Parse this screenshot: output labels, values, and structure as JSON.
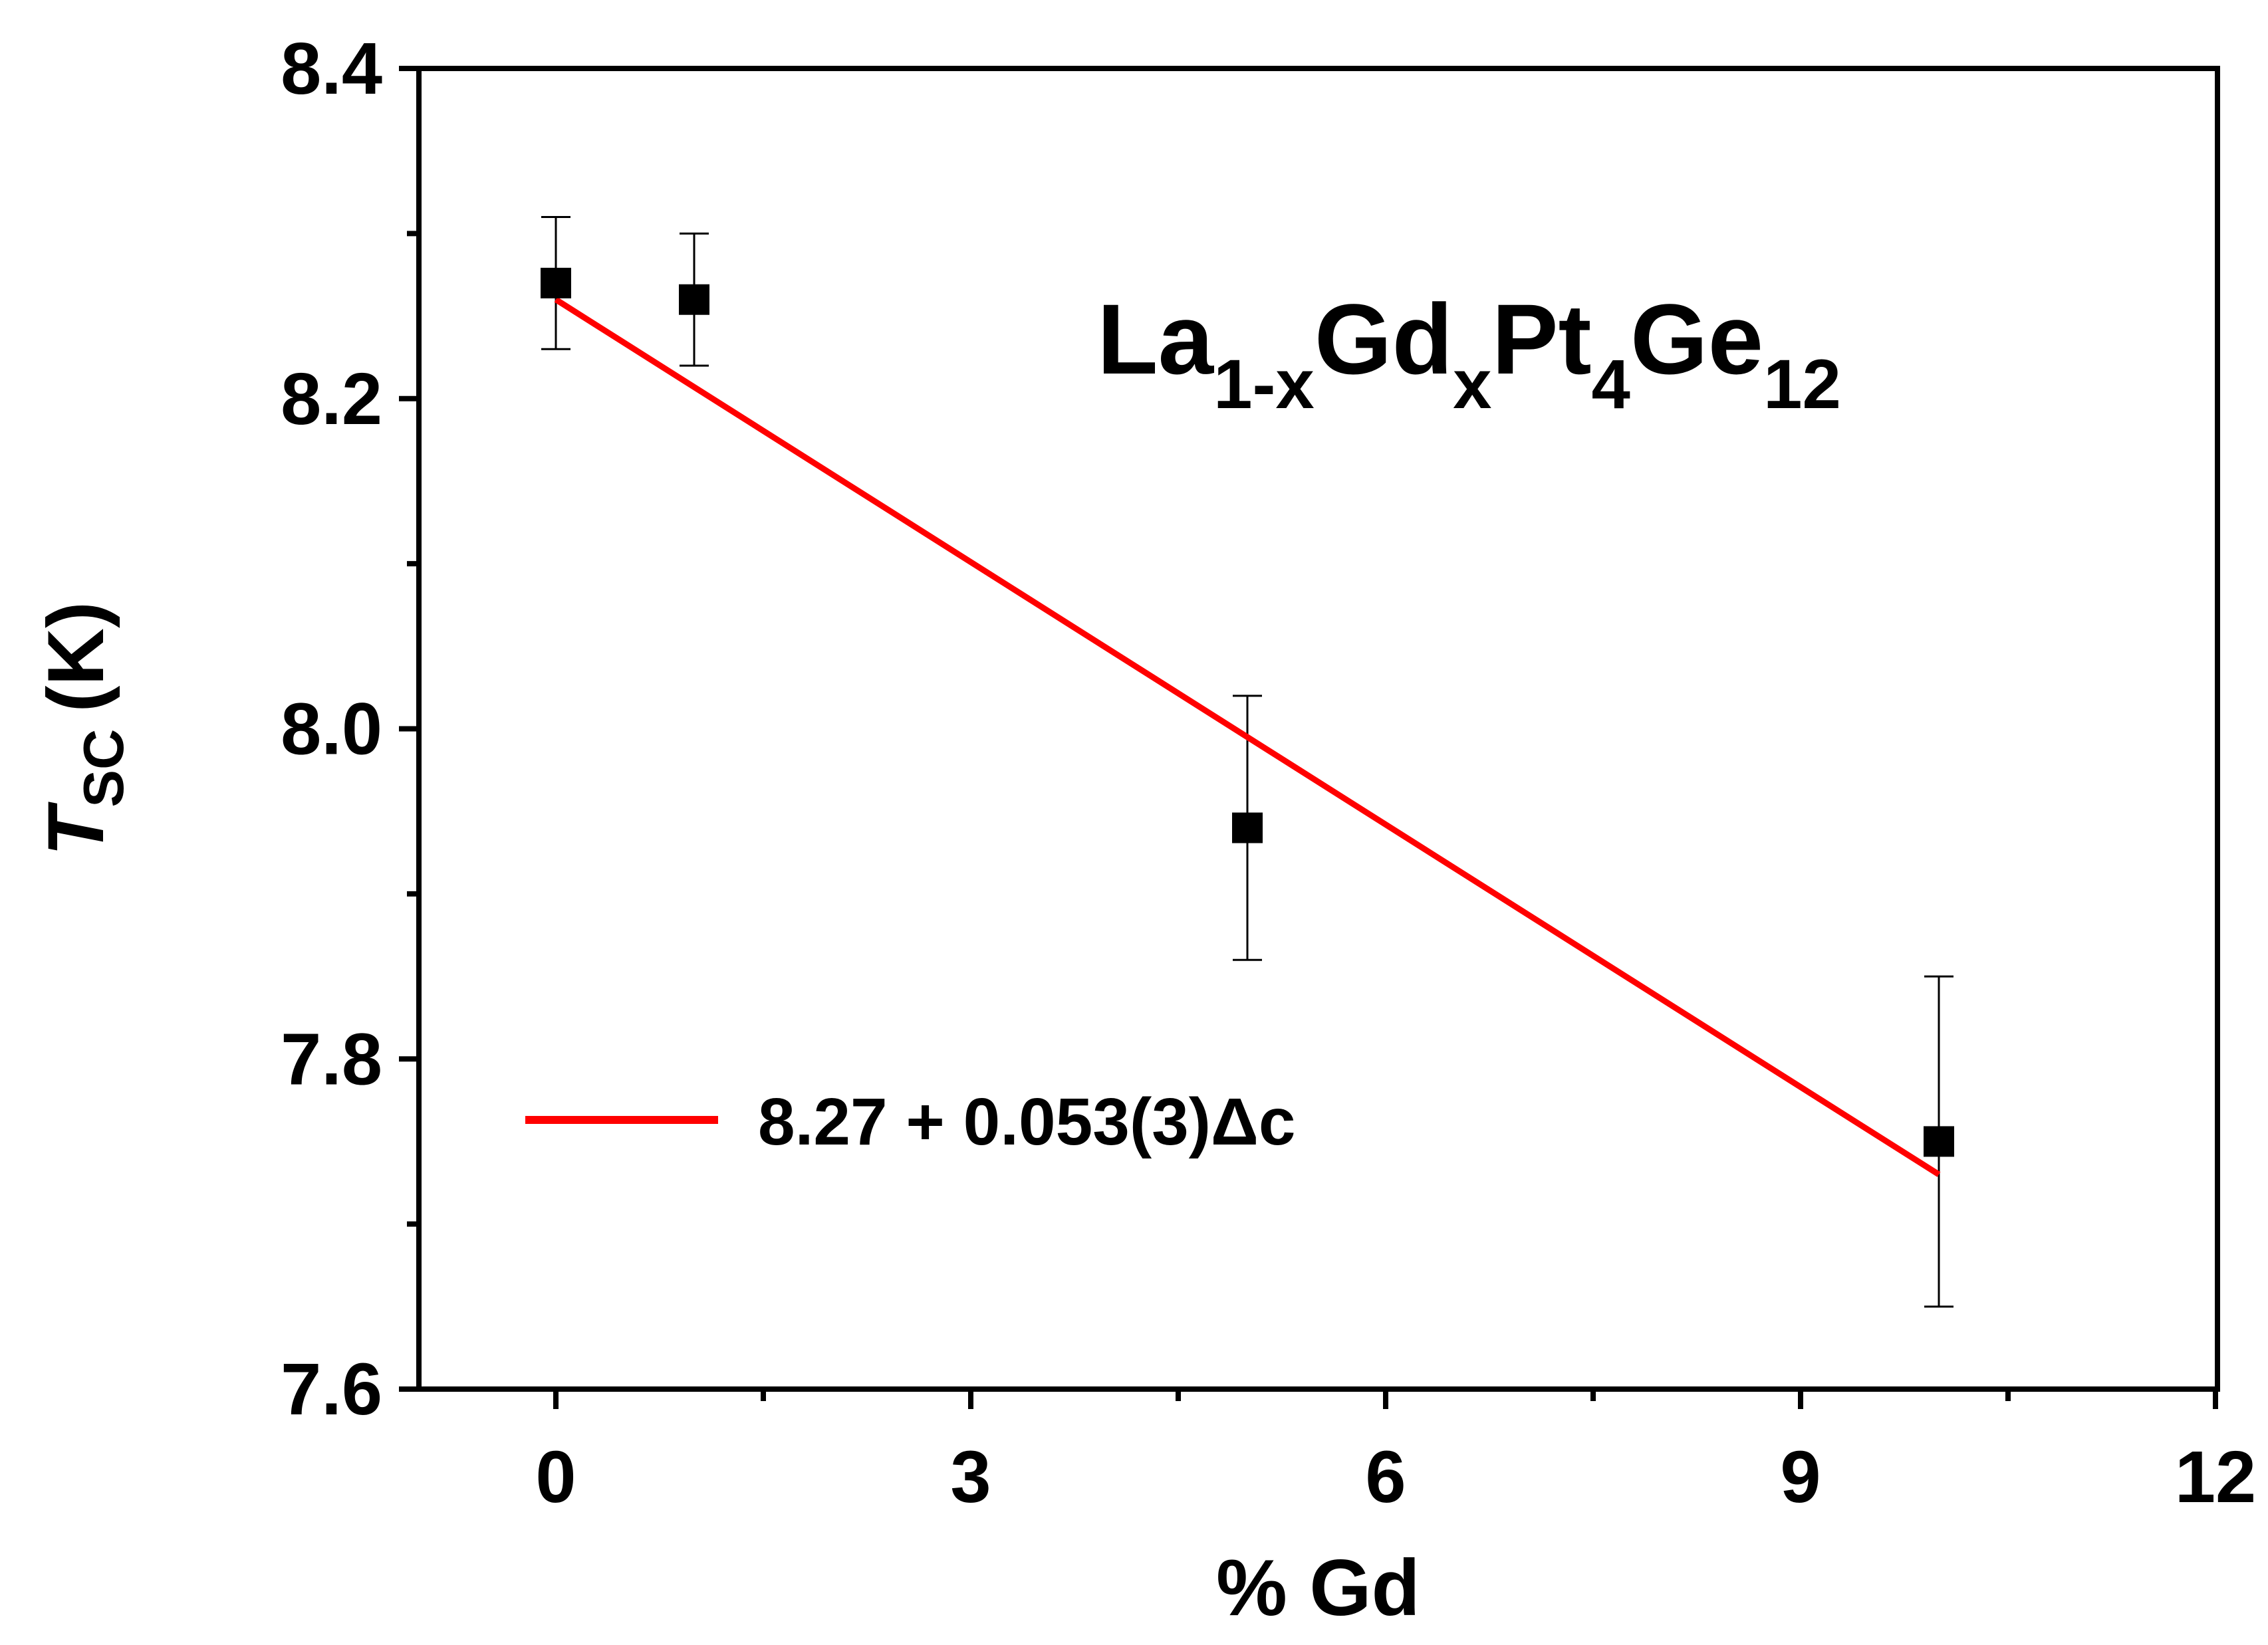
{
  "chart_data": {
    "type": "scatter",
    "title": "",
    "xlabel": "% Gd",
    "ylabel": {
      "symbol": "T",
      "subscript": "SC",
      "unit": "(K)"
    },
    "xlim": [
      -1,
      12
    ],
    "ylim": [
      7.6,
      8.4
    ],
    "x_ticks": [
      0,
      3,
      6,
      9,
      12
    ],
    "x_tick_labels": [
      "0",
      "3",
      "6",
      "9",
      "12"
    ],
    "x_minor_ticks": [
      1.5,
      4.5,
      7.5,
      10.5
    ],
    "y_ticks": [
      7.6,
      7.8,
      8.0,
      8.2,
      8.4
    ],
    "y_tick_labels": [
      "7.6",
      "7.8",
      "8.0",
      "8.2",
      "8.4"
    ],
    "y_minor_ticks": [
      7.7,
      7.9,
      8.1,
      8.3
    ],
    "grid": false,
    "legend_position": "bottom-left",
    "annotation": {
      "parts": [
        {
          "text": "La",
          "sub": false
        },
        {
          "text": "1-x",
          "sub": true
        },
        {
          "text": "Gd",
          "sub": false
        },
        {
          "text": "x",
          "sub": true
        },
        {
          "text": "Pt",
          "sub": false
        },
        {
          "text": "4",
          "sub": true
        },
        {
          "text": "Ge",
          "sub": false
        },
        {
          "text": "12",
          "sub": true
        }
      ]
    },
    "series": [
      {
        "kind": "points",
        "marker": "square",
        "color": "#000000",
        "x": [
          0,
          1,
          5,
          10
        ],
        "y": [
          8.27,
          8.26,
          7.94,
          7.75
        ],
        "yerr": [
          0.04,
          0.04,
          0.08,
          0.1
        ]
      },
      {
        "kind": "fit-line",
        "name": "8.27 + 0.053(3)Δc",
        "color": "#ff0000",
        "x": [
          0,
          10
        ],
        "y": [
          8.26,
          7.73
        ]
      }
    ]
  }
}
